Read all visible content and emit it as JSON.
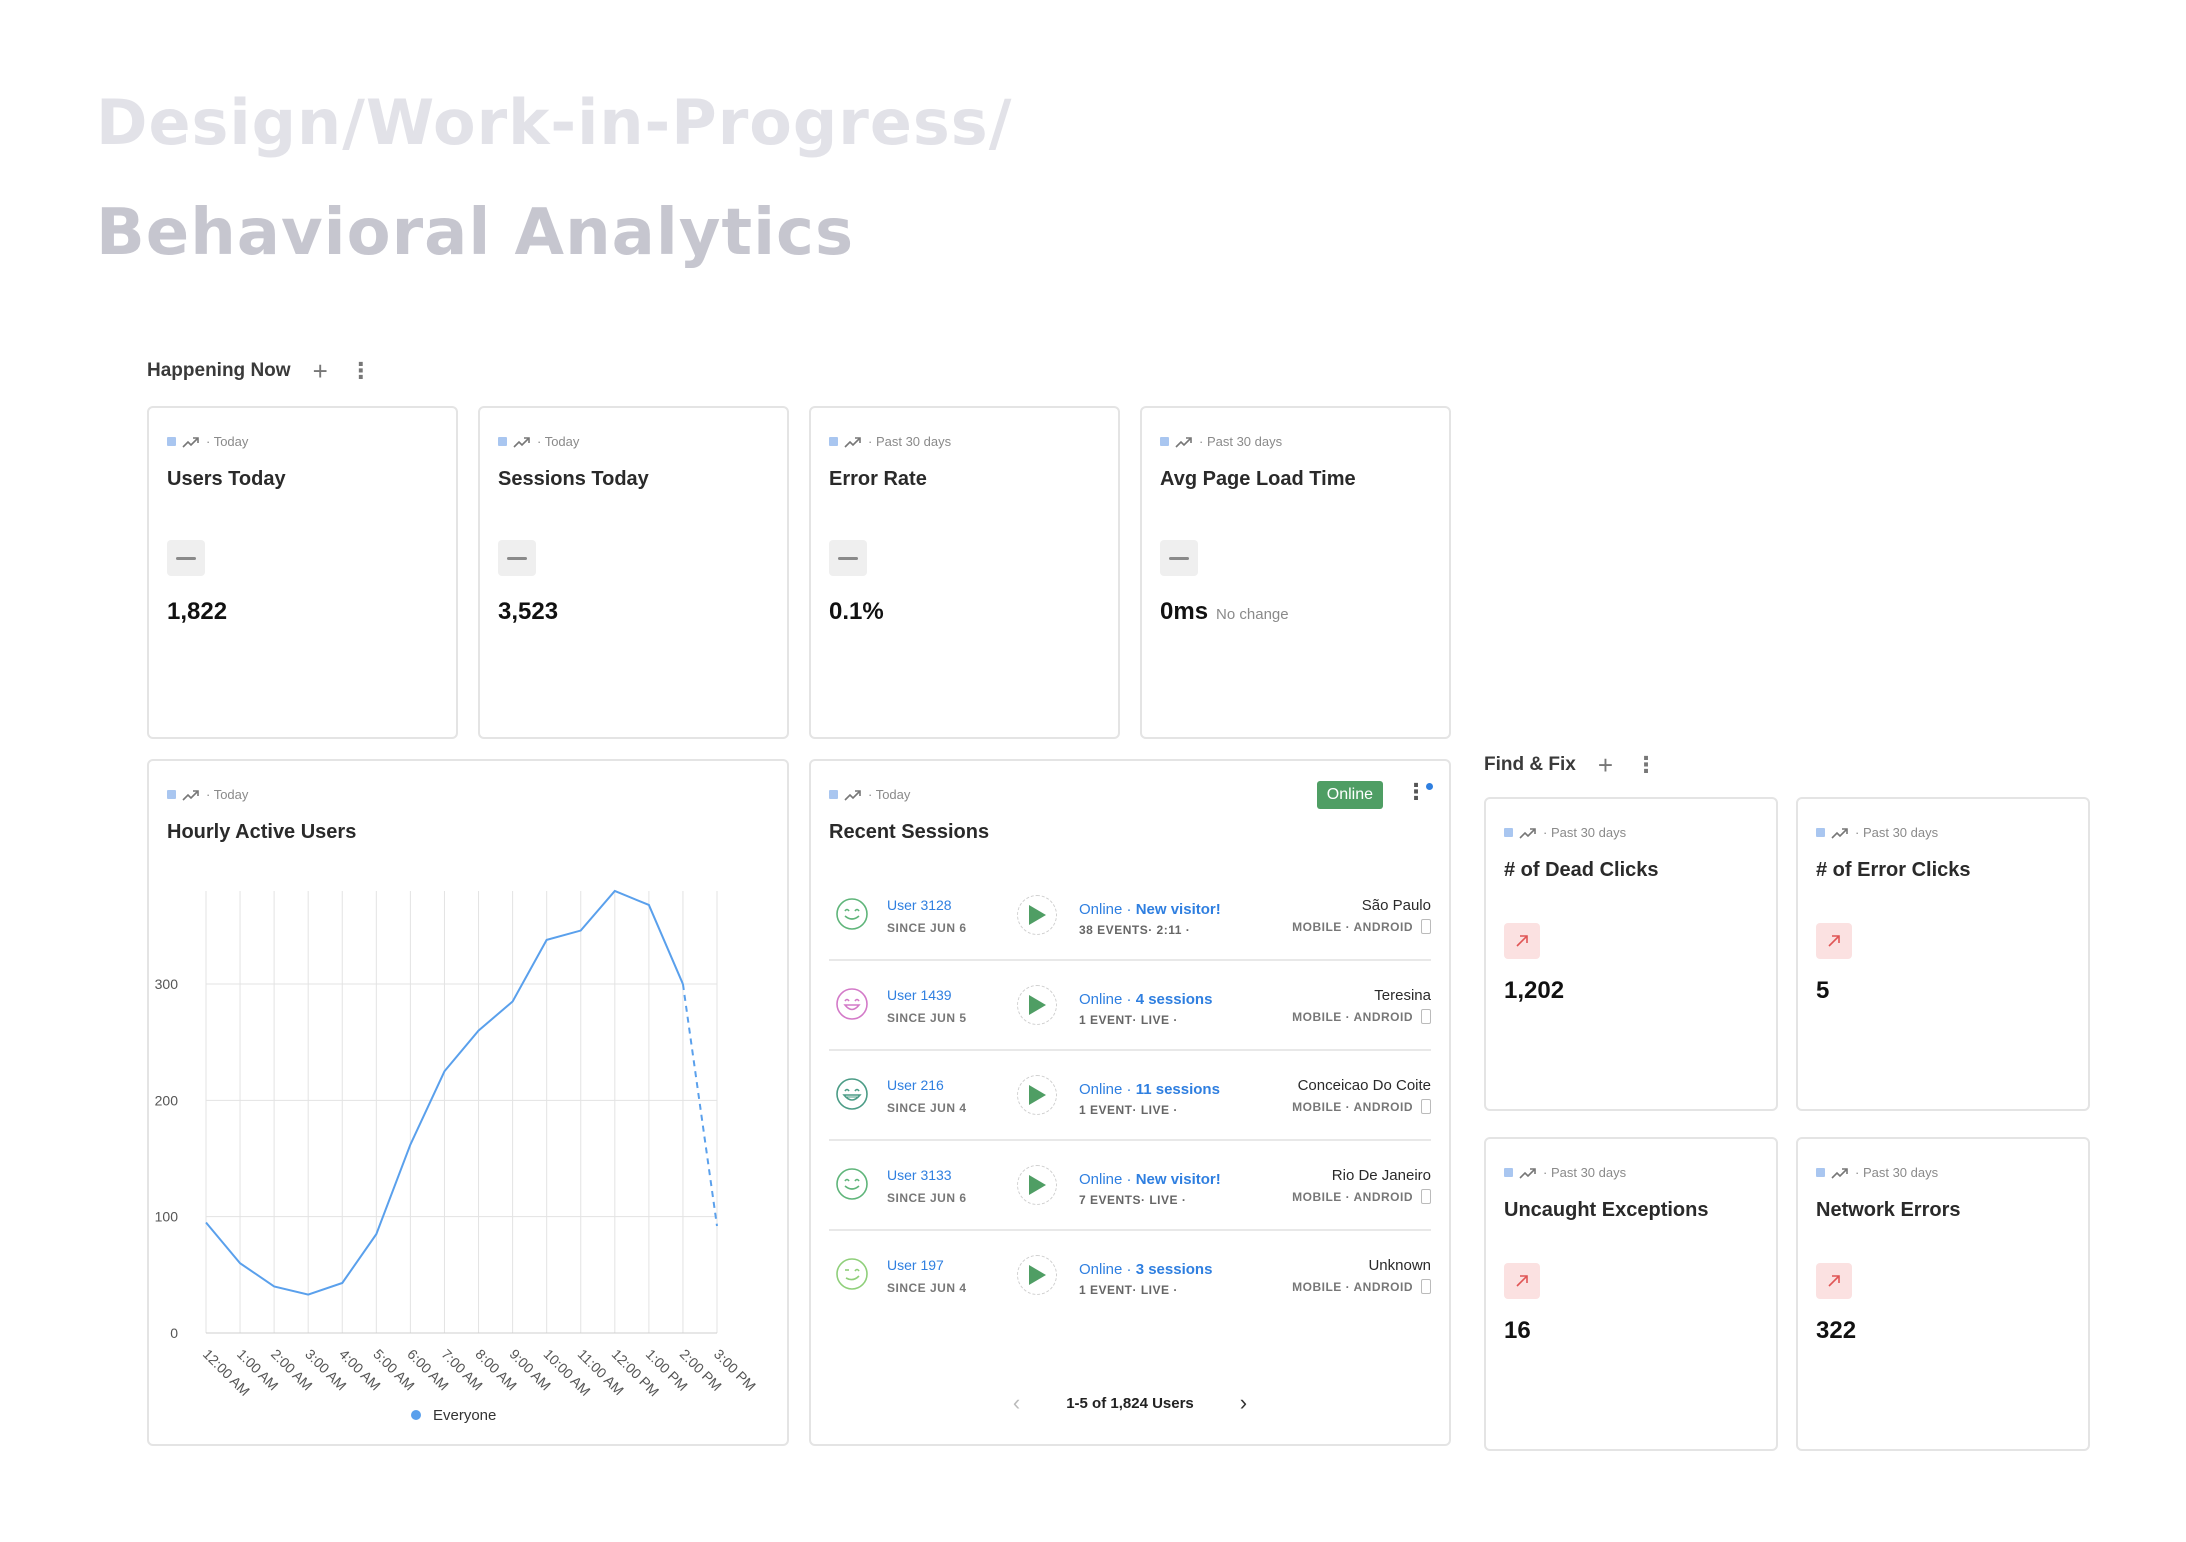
{
  "page": {
    "title_line1": "Design/Work-in-Progress/",
    "title_line2": "Behavioral Analytics"
  },
  "happening_now": {
    "label": "Happening Now",
    "add_icon": "plus-icon",
    "menu_icon": "kebab-icon",
    "cards": [
      {
        "period": "· Today",
        "title": "Users Today",
        "value": "1,822"
      },
      {
        "period": "· Today",
        "title": "Sessions Today",
        "value": "3,523"
      },
      {
        "period": "· Past 30 days",
        "title": "Error Rate",
        "value": "0.1%"
      },
      {
        "period": "· Past 30 days",
        "title": "Avg Page Load Time",
        "value": "0ms",
        "note": "No change"
      }
    ]
  },
  "hourly_chart": {
    "period": "· Today",
    "title": "Hourly Active Users",
    "legend": "Everyone"
  },
  "chart_data": {
    "type": "line",
    "title": "Hourly Active Users",
    "categories": [
      "12:00 AM",
      "1:00 AM",
      "2:00 AM",
      "3:00 AM",
      "4:00 AM",
      "5:00 AM",
      "6:00 AM",
      "7:00 AM",
      "8:00 AM",
      "9:00 AM",
      "10:00 AM",
      "11:00 AM",
      "12:00 PM",
      "1:00 PM",
      "2:00 PM",
      "3:00 PM"
    ],
    "x_tick_labels": [
      "12:00 AM",
      "1:00 AM",
      "2:00 AM",
      "3:00 AM",
      "4:00 AM",
      "5:00 AM",
      "6:00 AM",
      "7:00 AM",
      "8:00 AM",
      "9:00 AM",
      "10:00 AM",
      "11:00 AM",
      "12:00 PM",
      "1:00 PM",
      "2:00 PM",
      "3:00 PM"
    ],
    "y_ticks": [
      0,
      100,
      200,
      300
    ],
    "ylim": [
      0,
      380
    ],
    "series": [
      {
        "name": "Everyone",
        "values": [
          95,
          60,
          40,
          33,
          43,
          85,
          162,
          225,
          260,
          285,
          338,
          346,
          380,
          368,
          300,
          92
        ],
        "dashed_from_index": 14,
        "color": "#5aa0ec"
      }
    ],
    "grid": true,
    "legend_position": "bottom"
  },
  "recent_sessions": {
    "period": "· Today",
    "title": "Recent Sessions",
    "badge": "Online",
    "rows": [
      {
        "user": "User 3128",
        "since": "SINCE JUN 6",
        "status": "Online · ",
        "highlight": "New visitor!",
        "events": "38 EVENTS· 2:11 ·",
        "city": "São Paulo",
        "device": "MOBILE · ANDROID",
        "face_color": "#5fb57a",
        "face": "smile"
      },
      {
        "user": "User 1439",
        "since": "SINCE JUN 5",
        "status": "Online · ",
        "highlight": "4 sessions",
        "events": "1 EVENT· LIVE ·",
        "city": "Teresina",
        "device": "MOBILE · ANDROID",
        "face_color": "#d37ac8",
        "face": "grin"
      },
      {
        "user": "User 216",
        "since": "SINCE JUN 4",
        "status": "Online · ",
        "highlight": "11 sessions",
        "events": "1 EVENT· LIVE ·",
        "city": "Conceicao Do Coite",
        "device": "MOBILE · ANDROID",
        "face_color": "#4b9c86",
        "face": "laugh"
      },
      {
        "user": "User 3133",
        "since": "SINCE JUN 6",
        "status": "Online · ",
        "highlight": "New visitor!",
        "events": "7 EVENTS· LIVE ·",
        "city": "Rio De Janeiro",
        "device": "MOBILE · ANDROID",
        "face_color": "#5fb57a",
        "face": "smile"
      },
      {
        "user": "User 197",
        "since": "SINCE JUN 4",
        "status": "Online · ",
        "highlight": "3 sessions",
        "events": "1 EVENT· LIVE ·",
        "city": "Unknown",
        "device": "MOBILE · ANDROID",
        "face_color": "#8fcf7a",
        "face": "wink"
      }
    ],
    "pager": "1-5 of 1,824 Users"
  },
  "find_fix": {
    "label": "Find & Fix",
    "cards": [
      {
        "period": "· Past 30 days",
        "title": "# of Dead Clicks",
        "value": "1,202"
      },
      {
        "period": "· Past 30 days",
        "title": "# of Error Clicks",
        "value": "5"
      },
      {
        "period": "· Past 30 days",
        "title": "Uncaught Exceptions",
        "value": "16"
      },
      {
        "period": "· Past 30 days",
        "title": "Network Errors",
        "value": "322"
      }
    ]
  }
}
